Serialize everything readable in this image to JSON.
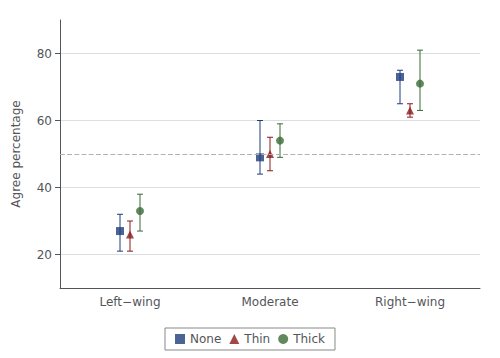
{
  "chart_data": {
    "type": "scatter",
    "ylabel": "Agree percentage",
    "categories": [
      "Left−wing",
      "Moderate",
      "Right−wing"
    ],
    "series": [
      {
        "name": "None",
        "color": "#1f3d7a",
        "marker": "square",
        "values": [
          27,
          49,
          73
        ],
        "ci_lower": [
          21,
          44,
          65
        ],
        "ci_upper": [
          32,
          60,
          75
        ]
      },
      {
        "name": "Thin",
        "color": "#8b1a1a",
        "marker": "triangle",
        "values": [
          26,
          50,
          63
        ],
        "ci_lower": [
          21,
          45,
          61
        ],
        "ci_upper": [
          30,
          55,
          65
        ]
      },
      {
        "name": "Thick",
        "color": "#3a6b35",
        "marker": "circle",
        "values": [
          33,
          54,
          71
        ],
        "ci_lower": [
          27,
          49,
          63
        ],
        "ci_upper": [
          38,
          59,
          81
        ]
      }
    ],
    "hline": 50,
    "ylim": [
      10,
      90
    ],
    "yticks": [
      20,
      40,
      60,
      80
    ],
    "grid": true,
    "legend": "bottom"
  }
}
